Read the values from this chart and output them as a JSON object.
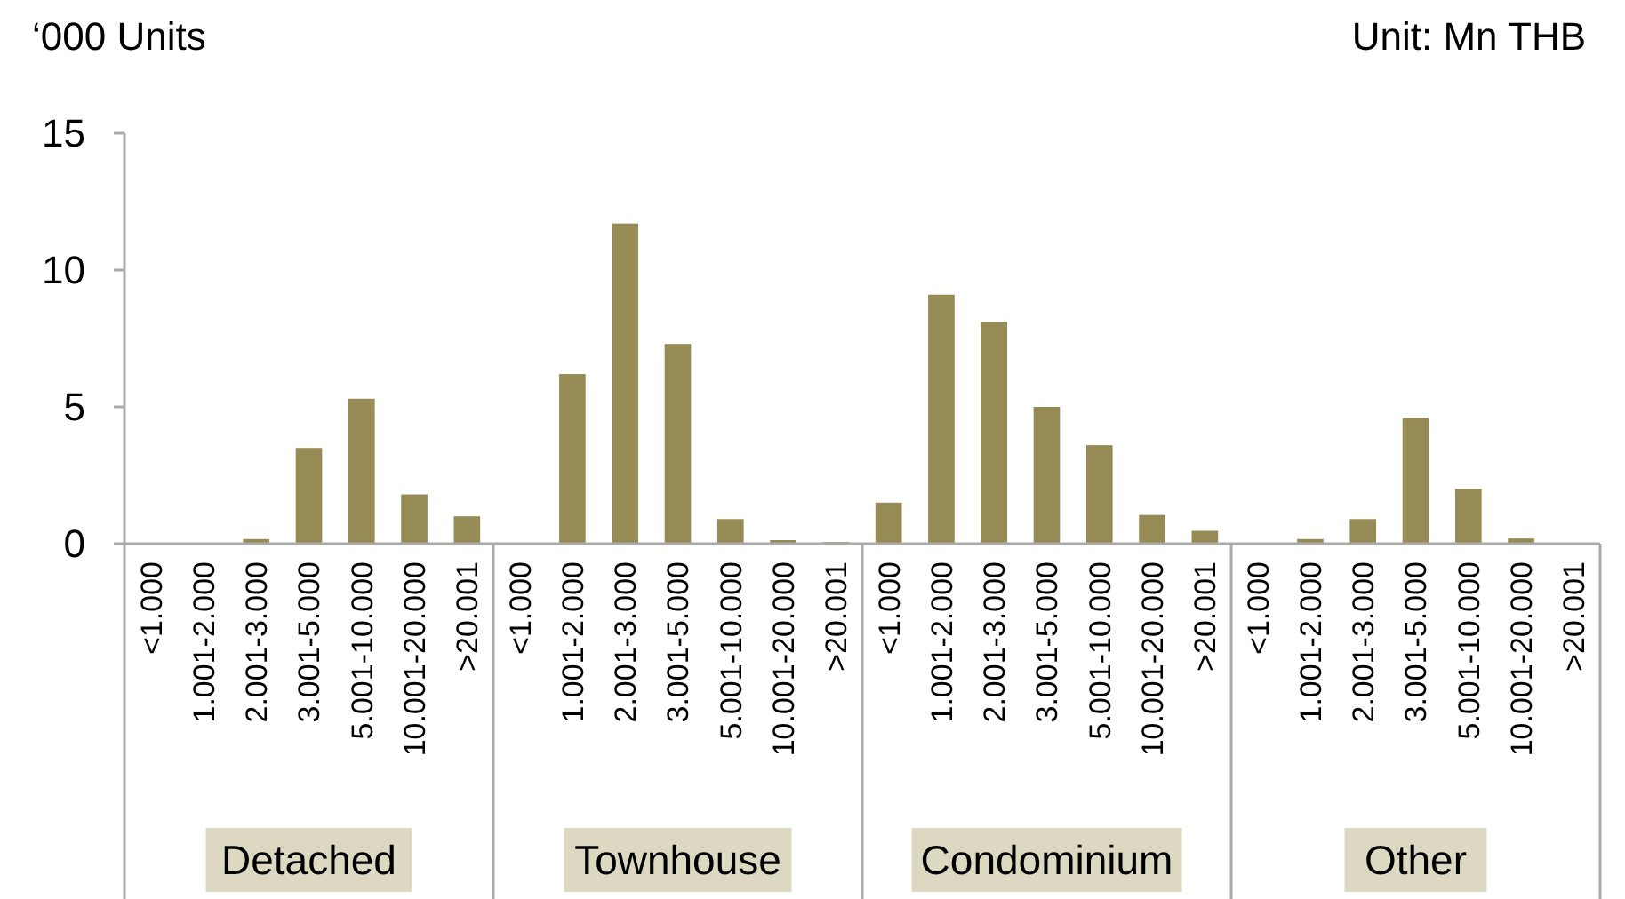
{
  "chart_data": {
    "type": "bar",
    "ylabel": "‘000 Units",
    "xlabel": "Unit: Mn THB",
    "categories": [
      "<1.000",
      "1.001-2.000",
      "2.001-3.000",
      "3.001-5.000",
      "5.001-10.000",
      "10.001-20.000",
      ">20.001",
      "<1.000",
      "1.001-2.000",
      "2.001-3.000",
      "3.001-5.000",
      "5.001-10.000",
      "10.001-20.000",
      ">20.001",
      "<1.000",
      "1.001-2.000",
      "2.001-3.000",
      "3.001-5.000",
      "5.001-10.000",
      "10.001-20.000",
      ">20.001",
      "<1.000",
      "1.001-2.000",
      "2.001-3.000",
      "3.001-5.000",
      "5.001-10.000",
      "10.001-20.000",
      ">20.001"
    ],
    "values": [
      0,
      0,
      0.17,
      3.5,
      5.3,
      1.8,
      1.0,
      0,
      6.2,
      11.7,
      7.3,
      0.9,
      0.13,
      0.06,
      1.5,
      9.1,
      8.1,
      5.0,
      3.6,
      1.05,
      0.47,
      0,
      0.17,
      0.9,
      4.6,
      2.0,
      0.19,
      0
    ],
    "color": "#968b54",
    "ylim": [
      0,
      15
    ],
    "yticks": [
      0,
      5,
      10,
      15
    ],
    "grid": false,
    "annotations": [
      "Detached",
      "Townhouse",
      "Condominium",
      "Other"
    ]
  }
}
